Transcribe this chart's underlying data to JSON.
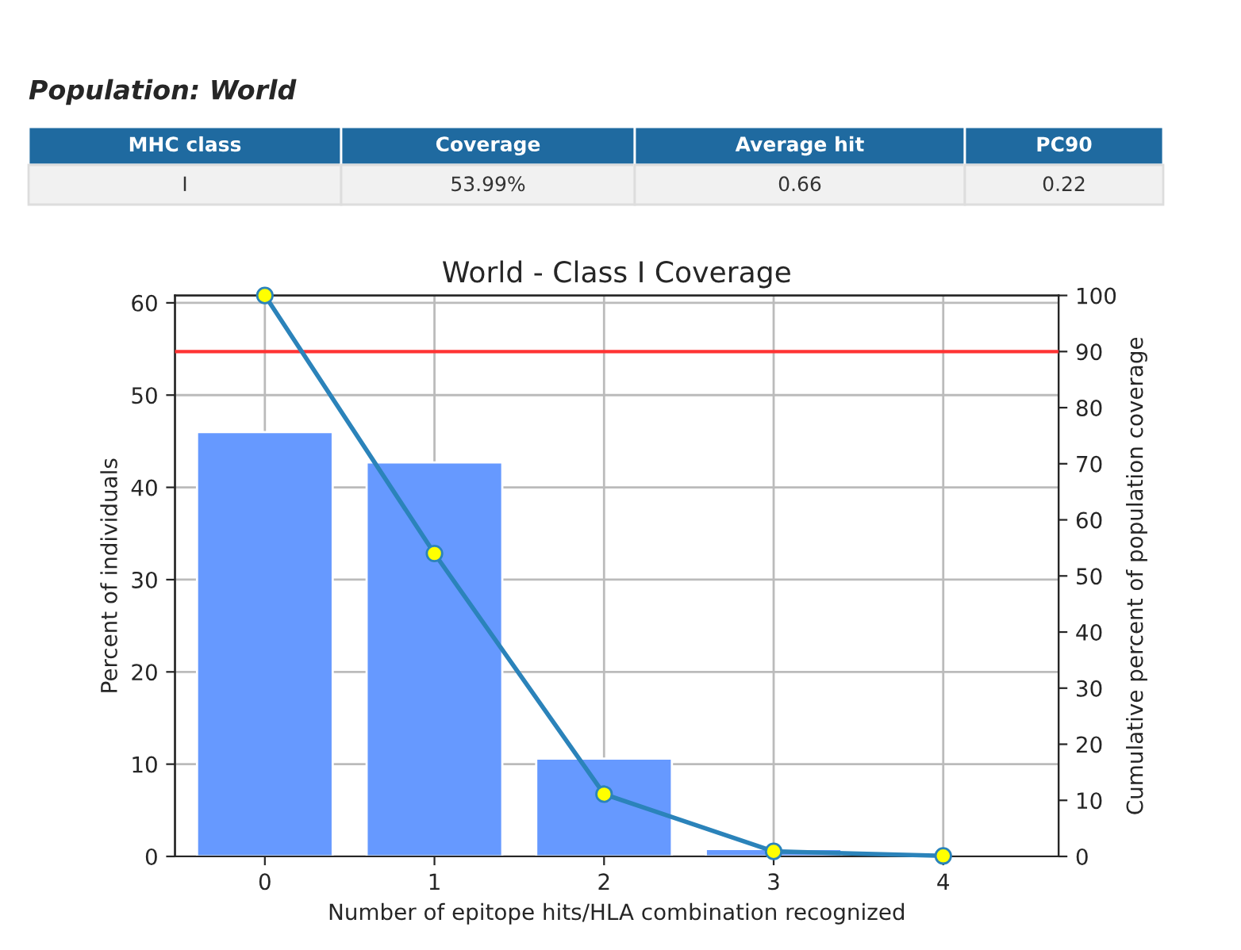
{
  "chart_data": {
    "type": "bar",
    "title": "World - Class I Coverage",
    "xlabel": "Number of epitope hits/HLA combination recognized",
    "ylabel": "Percent of individuals",
    "y2label": "Cumulative percent of population coverage",
    "categories": [
      "0",
      "1",
      "2",
      "3",
      "4"
    ],
    "series": [
      {
        "color": "#6699ff",
        "values": [
          46.0,
          42.7,
          10.6,
          0.8,
          null
        ]
      },
      {
        "type": "line",
        "axis": "y2",
        "color": "#2b83ba",
        "marker": "circle",
        "line_style": "solid",
        "values": [
          100,
          54.0,
          11.1,
          0.9,
          0.1
        ]
      }
    ],
    "ylim": [
      0,
      60.8
    ],
    "yticks": [
      0,
      10,
      20,
      30,
      40,
      50,
      60
    ],
    "y2lim": [
      0,
      100
    ],
    "y2ticks": [
      0,
      10,
      20,
      30,
      40,
      50,
      60,
      70,
      80,
      90,
      100
    ],
    "ref_lines": [
      {
        "axis": "y2",
        "value": 90,
        "color": "#ff3333"
      }
    ],
    "grid": true,
    "legend": false,
    "annotations": [
      "Population: World",
      "MHC class",
      "Coverage",
      "Average hit",
      "PC90",
      "I",
      "53.99%",
      "0.66",
      "0.22"
    ]
  }
}
